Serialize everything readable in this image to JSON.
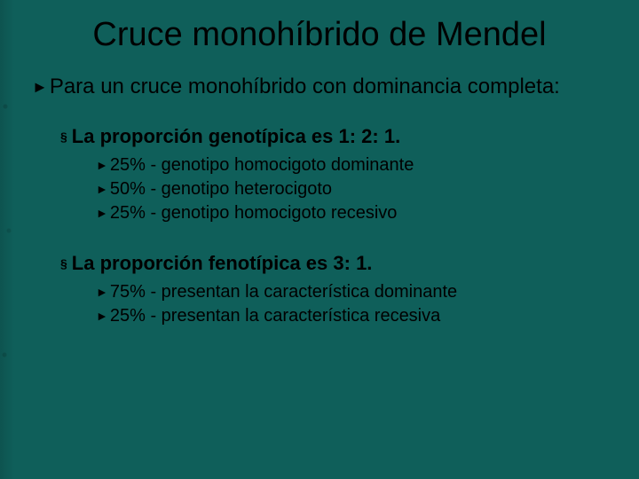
{
  "colors": {
    "background": "#0f5f5a",
    "text": "#000000"
  },
  "title": "Cruce monohíbrido de Mendel",
  "intro": {
    "prefix": "Para",
    "rest": " un cruce monohíbrido con dominancia completa:"
  },
  "sections": [
    {
      "heading": "La proporción genotípica es 1: 2: 1.",
      "items": [
        "25% - genotipo homocigoto dominante",
        "50% - genotipo heterocigoto",
        "25% - genotipo homocigoto recesivo"
      ]
    },
    {
      "heading": "La proporción fenotípica es 3: 1.",
      "items": [
        "75% - presentan la característica dominante",
        "25% - presentan la característica recesiva"
      ]
    }
  ],
  "bullets": {
    "triangle": "►",
    "square": "§"
  }
}
